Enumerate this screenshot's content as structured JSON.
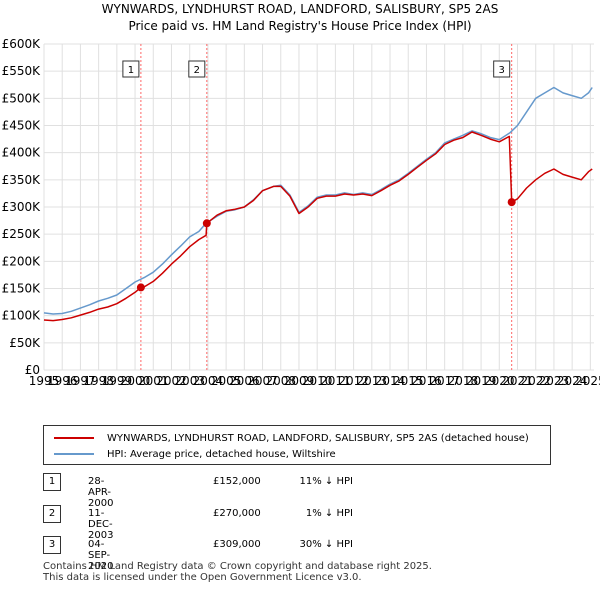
{
  "title_line1": "WYNWARDS, LYNDHURST ROAD, LANDFORD, SALISBURY, SP5 2AS",
  "title_line2": "Price paid vs. HM Land Registry's House Price Index (HPI)",
  "colors": {
    "property": "#cc0000",
    "hpi": "#6699cc",
    "vline": "#ff6666",
    "grid": "#e0e0e0"
  },
  "chart_data": {
    "type": "line",
    "xlim": [
      1995,
      2025.2
    ],
    "ylim": [
      0,
      600000
    ],
    "y_ticks": [
      {
        "value": 0,
        "label": "£0"
      },
      {
        "value": 50000,
        "label": "£50K"
      },
      {
        "value": 100000,
        "label": "£100K"
      },
      {
        "value": 150000,
        "label": "£150K"
      },
      {
        "value": 200000,
        "label": "£200K"
      },
      {
        "value": 250000,
        "label": "£250K"
      },
      {
        "value": 300000,
        "label": "£300K"
      },
      {
        "value": 350000,
        "label": "£350K"
      },
      {
        "value": 400000,
        "label": "£400K"
      },
      {
        "value": 450000,
        "label": "£450K"
      },
      {
        "value": 500000,
        "label": "£500K"
      },
      {
        "value": 550000,
        "label": "£550K"
      },
      {
        "value": 600000,
        "label": "£600K"
      }
    ],
    "x_ticks": [
      "1995",
      "1996",
      "1997",
      "1998",
      "1999",
      "2000",
      "2001",
      "2002",
      "2003",
      "2004",
      "2005",
      "2006",
      "2007",
      "2008",
      "2009",
      "2010",
      "2011",
      "2012",
      "2013",
      "2014",
      "2015",
      "2016",
      "2017",
      "2018",
      "2019",
      "2020",
      "2021",
      "2022",
      "2023",
      "2024",
      "2025"
    ],
    "series": [
      {
        "name": "HPI: Average price, detached house, Wiltshire",
        "x": [
          1995.0,
          1995.5,
          1996.0,
          1996.5,
          1997.0,
          1997.5,
          1998.0,
          1998.5,
          1999.0,
          1999.5,
          2000.0,
          2000.5,
          2001.0,
          2001.5,
          2002.0,
          2002.5,
          2003.0,
          2003.5,
          2003.9,
          2004.5,
          2005.0,
          2005.5,
          2006.0,
          2006.5,
          2007.0,
          2007.6,
          2008.0,
          2008.5,
          2009.0,
          2009.5,
          2010.0,
          2010.5,
          2011.0,
          2011.5,
          2012.0,
          2012.5,
          2013.0,
          2013.5,
          2014.0,
          2014.5,
          2015.0,
          2015.5,
          2016.0,
          2016.5,
          2017.0,
          2017.5,
          2018.0,
          2018.5,
          2019.0,
          2019.5,
          2020.0,
          2020.6,
          2021.0,
          2021.5,
          2022.0,
          2022.5,
          2023.0,
          2023.5,
          2024.0,
          2024.5,
          2024.9,
          2025.1
        ],
        "y": [
          105000,
          103000,
          104000,
          108000,
          114000,
          120000,
          127000,
          132000,
          138000,
          150000,
          162000,
          170000,
          180000,
          195000,
          212000,
          228000,
          245000,
          255000,
          270000,
          283000,
          292000,
          295000,
          300000,
          313000,
          330000,
          338000,
          340000,
          322000,
          290000,
          302000,
          318000,
          322000,
          322000,
          326000,
          323000,
          326000,
          323000,
          332000,
          342000,
          350000,
          362000,
          375000,
          388000,
          400000,
          418000,
          425000,
          432000,
          440000,
          435000,
          428000,
          424000,
          437000,
          450000,
          475000,
          500000,
          510000,
          520000,
          510000,
          505000,
          500000,
          510000,
          520000
        ]
      },
      {
        "name": "WYNWARDS, LYNDHURST ROAD, LANDFORD, SALISBURY, SP5 2AS (detached house)",
        "x": [
          1995.0,
          1995.5,
          1996.0,
          1996.5,
          1997.0,
          1997.5,
          1998.0,
          1998.5,
          1999.0,
          1999.5,
          2000.0,
          2000.32,
          2000.5,
          2001.0,
          2001.5,
          2002.0,
          2002.5,
          2003.0,
          2003.5,
          2003.9,
          2003.94,
          2004.5,
          2005.0,
          2005.5,
          2006.0,
          2006.5,
          2007.0,
          2007.6,
          2008.0,
          2008.5,
          2009.0,
          2009.5,
          2010.0,
          2010.5,
          2011.0,
          2011.5,
          2012.0,
          2012.5,
          2013.0,
          2013.5,
          2014.0,
          2014.5,
          2015.0,
          2015.5,
          2016.0,
          2016.5,
          2017.0,
          2017.5,
          2018.0,
          2018.5,
          2019.0,
          2019.5,
          2020.0,
          2020.55,
          2020.68,
          2021.0,
          2021.5,
          2022.0,
          2022.5,
          2023.0,
          2023.5,
          2024.0,
          2024.5,
          2024.9,
          2025.1
        ],
        "y": [
          92000,
          91000,
          93000,
          96000,
          101000,
          106000,
          112000,
          116000,
          122000,
          132000,
          143000,
          152000,
          153000,
          163000,
          178000,
          195000,
          210000,
          227000,
          240000,
          248000,
          270000,
          285000,
          293000,
          296000,
          300000,
          312000,
          330000,
          338000,
          338000,
          320000,
          288000,
          300000,
          316000,
          320000,
          320000,
          324000,
          322000,
          324000,
          321000,
          330000,
          340000,
          348000,
          360000,
          373000,
          386000,
          398000,
          415000,
          423000,
          428000,
          438000,
          432000,
          425000,
          420000,
          430000,
          309000,
          315000,
          335000,
          350000,
          362000,
          370000,
          360000,
          355000,
          350000,
          365000,
          370000
        ]
      }
    ],
    "sales": [
      {
        "id": "1",
        "x": 2000.32,
        "y": 152000
      },
      {
        "id": "2",
        "x": 2003.94,
        "y": 270000
      },
      {
        "id": "3",
        "x": 2020.68,
        "y": 309000
      }
    ]
  },
  "legend": {
    "property": "WYNWARDS, LYNDHURST ROAD, LANDFORD, SALISBURY, SP5 2AS (detached house)",
    "hpi": "HPI: Average price, detached house, Wiltshire"
  },
  "sales_table": [
    {
      "num": "1",
      "date": "28-APR-2000",
      "price": "£152,000",
      "hpi": "11% ↓ HPI"
    },
    {
      "num": "2",
      "date": "11-DEC-2003",
      "price": "£270,000",
      "hpi": "1% ↓ HPI"
    },
    {
      "num": "3",
      "date": "04-SEP-2020",
      "price": "£309,000",
      "hpi": "30% ↓ HPI"
    }
  ],
  "footer": {
    "line1": "Contains HM Land Registry data © Crown copyright and database right 2025.",
    "line2": "This data is licensed under the Open Government Licence v3.0."
  }
}
